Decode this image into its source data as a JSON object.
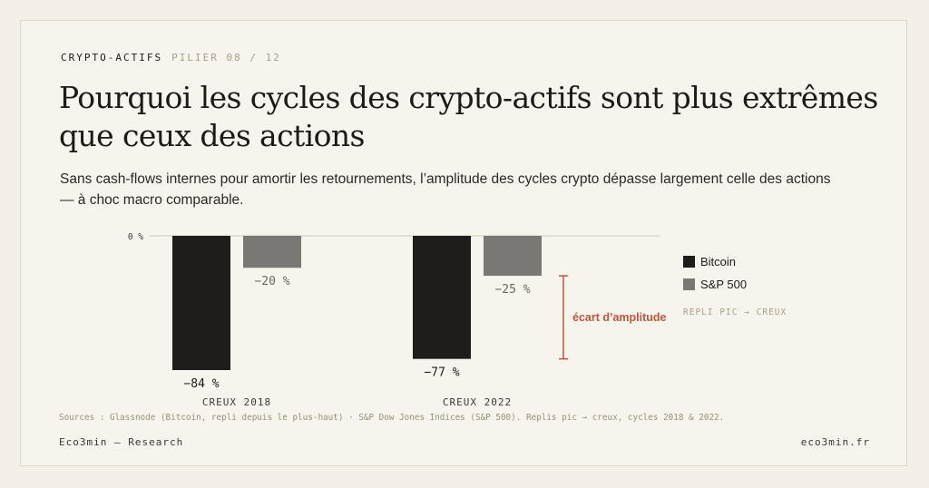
{
  "kicker": {
    "category": "CRYPTO-ACTIFS",
    "pillar": "PILIER 08 / 12"
  },
  "title": "Pourquoi les cycles des crypto-actifs sont plus extrêmes que ceux des actions",
  "subtitle": "Sans cash-flows internes pour amortir les retournements, l’amplitude des cycles crypto dépasse largement celle des actions — à choc macro comparable.",
  "colors": {
    "bitcoin": "#1e1d1b",
    "sp500": "#7a7875",
    "annotation": "#c0563b",
    "accent_muted": "#a89e86"
  },
  "chart_data": {
    "type": "bar",
    "categories": [
      "CREUX 2018",
      "CREUX 2022"
    ],
    "series": [
      {
        "name": "Bitcoin",
        "values": [
          -84,
          -77
        ],
        "labels": [
          "−84 %",
          "−77 %"
        ]
      },
      {
        "name": "S&P 500",
        "values": [
          -20,
          -25
        ],
        "labels": [
          "−20 %",
          "−25 %"
        ]
      }
    ],
    "ylim": [
      -84,
      0
    ],
    "y_tick_label": "0 %",
    "legend_position": "right",
    "legend_note": "REPLI PIC → CREUX",
    "annotation": "écart d’amplitude"
  },
  "sources": "Sources : Glassnode (Bitcoin, repli depuis le plus-haut) · S&P Dow Jones Indices (S&P 500). Replis pic → creux, cycles 2018 & 2022.",
  "footer": {
    "left": "Eco3min — Research",
    "right": "eco3min.fr"
  }
}
